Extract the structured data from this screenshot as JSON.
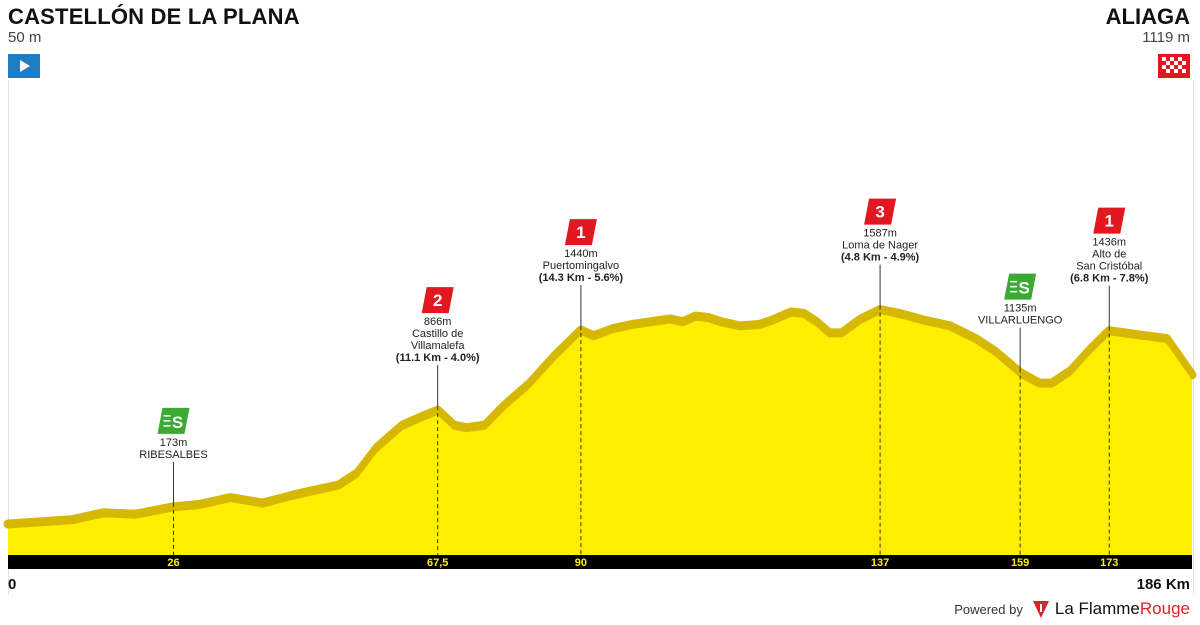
{
  "stage": {
    "start": {
      "name": "CASTELLÓN DE LA PLANA",
      "altitude": "50 m"
    },
    "finish": {
      "name": "ALIAGA",
      "altitude": "1119 m"
    },
    "km_start_label": "0",
    "km_total_label": "186 Km"
  },
  "branding": {
    "powered_by": "Powered by",
    "brand_part1": "La Flamme",
    "brand_part2": "Rouge"
  },
  "colors": {
    "profile_fill": "#ffee00",
    "profile_ridge": "#d6b800",
    "axis_bar": "#000000",
    "axis_text": "#ffee00",
    "kom_badge": "#e2171f",
    "sprint_badge": "#3aaa35",
    "start_flag": "#1f7dc4"
  },
  "chart_data": {
    "type": "area",
    "x_unit": "km",
    "y_unit": "m",
    "total_km": 186,
    "profile": [
      [
        0,
        50
      ],
      [
        10,
        80
      ],
      [
        15,
        130
      ],
      [
        20,
        120
      ],
      [
        26,
        173
      ],
      [
        30,
        190
      ],
      [
        35,
        240
      ],
      [
        40,
        200
      ],
      [
        45,
        260
      ],
      [
        50,
        310
      ],
      [
        52,
        330
      ],
      [
        55,
        420
      ],
      [
        58,
        600
      ],
      [
        62,
        760
      ],
      [
        65,
        820
      ],
      [
        67.5,
        866
      ],
      [
        70,
        760
      ],
      [
        72,
        740
      ],
      [
        75,
        760
      ],
      [
        78,
        900
      ],
      [
        82,
        1060
      ],
      [
        86,
        1260
      ],
      [
        90,
        1440
      ],
      [
        92,
        1400
      ],
      [
        95,
        1450
      ],
      [
        98,
        1480
      ],
      [
        101,
        1500
      ],
      [
        104,
        1520
      ],
      [
        106,
        1500
      ],
      [
        108,
        1540
      ],
      [
        110,
        1530
      ],
      [
        112,
        1500
      ],
      [
        115,
        1470
      ],
      [
        118,
        1480
      ],
      [
        120,
        1510
      ],
      [
        123,
        1570
      ],
      [
        125,
        1560
      ],
      [
        127,
        1500
      ],
      [
        129,
        1420
      ],
      [
        131,
        1420
      ],
      [
        134,
        1520
      ],
      [
        137,
        1587
      ],
      [
        140,
        1560
      ],
      [
        144,
        1510
      ],
      [
        148,
        1470
      ],
      [
        152,
        1380
      ],
      [
        155,
        1290
      ],
      [
        159,
        1135
      ],
      [
        162,
        1060
      ],
      [
        164,
        1060
      ],
      [
        167,
        1150
      ],
      [
        170,
        1300
      ],
      [
        173,
        1436
      ],
      [
        177,
        1410
      ],
      [
        182,
        1380
      ],
      [
        186,
        1119
      ]
    ],
    "markers": [
      {
        "km": 26,
        "altitude": 173,
        "type": "sprint",
        "badge": "S",
        "alt_label": "173m",
        "name": "RIBESALBES",
        "detail": "",
        "axis_label": "26"
      },
      {
        "km": 67.5,
        "altitude": 866,
        "type": "kom",
        "badge": "2",
        "alt_label": "866m",
        "name": "Castillo de Villamalefa",
        "detail": "(11.1 Km - 4.0%)",
        "axis_label": "67,5"
      },
      {
        "km": 90,
        "altitude": 1440,
        "type": "kom",
        "badge": "1",
        "alt_label": "1440m",
        "name": "Puertomingalvo",
        "detail": "(14.3 Km - 5.6%)",
        "axis_label": "90"
      },
      {
        "km": 137,
        "altitude": 1587,
        "type": "kom",
        "badge": "3",
        "alt_label": "1587m",
        "name": "Loma de Nager",
        "detail": "(4.8 Km - 4.9%)",
        "axis_label": "137"
      },
      {
        "km": 159,
        "altitude": 1135,
        "type": "sprint",
        "badge": "S",
        "alt_label": "1135m",
        "name": "VILLARLUENGO",
        "detail": "",
        "axis_label": "159"
      },
      {
        "km": 173,
        "altitude": 1436,
        "type": "kom",
        "badge": "1",
        "alt_label": "1436m",
        "name": "Alto de San Cristóbal",
        "detail": "(6.8 Km - 7.8%)",
        "axis_label": "173"
      }
    ]
  }
}
